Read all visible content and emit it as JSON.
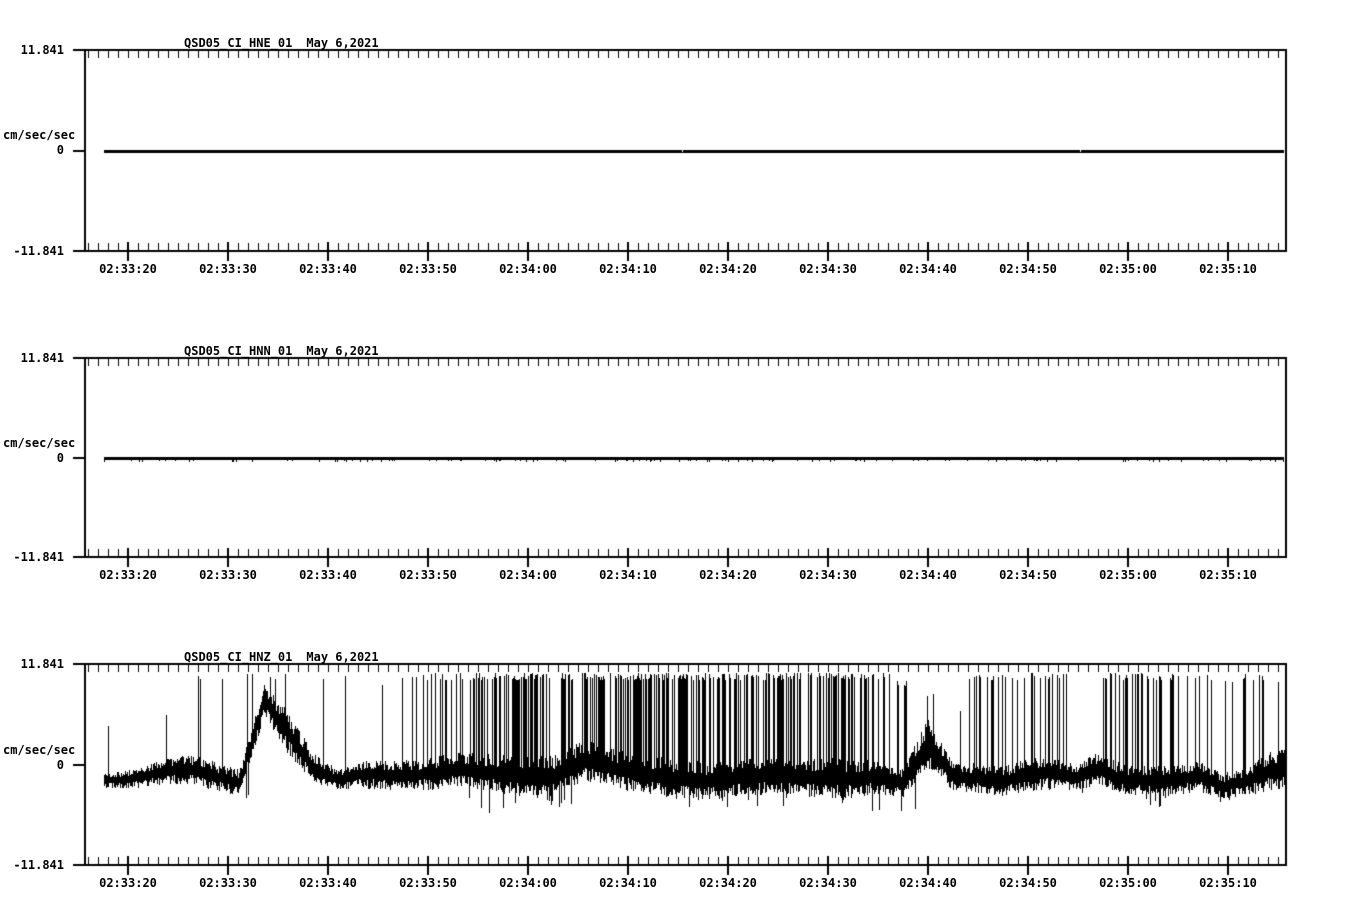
{
  "window": {
    "background": "#ffffff",
    "foreground": "#000000"
  },
  "y_axis": {
    "max_label": "11.841",
    "zero_label": "0",
    "min_label": "-11.841",
    "units_label": "cm/sec/sec"
  },
  "x_axis": {
    "labels": [
      "02:33:20",
      "02:33:30",
      "02:33:40",
      "02:33:50",
      "02:34:00",
      "02:34:10",
      "02:34:20",
      "02:34:30",
      "02:34:40",
      "02:34:50",
      "02:35:00",
      "02:35:10"
    ],
    "major_interval_seconds": 10,
    "minor_interval_seconds": 1
  },
  "panels": [
    {
      "channel": "QSD05_CI_HNE_01",
      "date": "May 6,2021",
      "trace_type": "flat"
    },
    {
      "channel": "QSD05_CI_HNN_01",
      "date": "May 6,2021",
      "trace_type": "flat_with_dropouts"
    },
    {
      "channel": "QSD05_CI_HNZ_01",
      "date": "May 6,2021",
      "trace_type": "noisy"
    }
  ],
  "chart_data": [
    {
      "type": "line",
      "title": "QSD05_CI_HNE_01",
      "subtitle": "May 6,2021",
      "xlabel": "",
      "ylabel": "cm/sec/sec",
      "ylim": [
        -11.841,
        11.841
      ],
      "x_tick_labels": [
        "02:33:20",
        "02:33:30",
        "02:33:40",
        "02:33:50",
        "02:34:00",
        "02:34:10",
        "02:34:20",
        "02:34:30",
        "02:34:40",
        "02:34:50",
        "02:35:00",
        "02:35:10"
      ],
      "grid": false,
      "legend": "none",
      "series": [
        {
          "name": "QSD05_CI_HNE_01",
          "summary": "constant zero acceleration over the whole window",
          "values_constant": 0,
          "line_gaps_x_fraction": [
            0.49,
            0.827
          ]
        }
      ]
    },
    {
      "type": "line",
      "title": "QSD05_CI_HNN_01",
      "subtitle": "May 6,2021",
      "xlabel": "",
      "ylabel": "cm/sec/sec",
      "ylim": [
        -11.841,
        11.841
      ],
      "x_tick_labels": [
        "02:33:20",
        "02:33:30",
        "02:33:40",
        "02:33:50",
        "02:34:00",
        "02:34:10",
        "02:34:20",
        "02:34:30",
        "02:34:40",
        "02:34:50",
        "02:35:00",
        "02:35:10"
      ],
      "grid": false,
      "legend": "none",
      "series": [
        {
          "name": "QSD05_CI_HNN_01",
          "summary": "constant zero line with scattered tiny negative dropout blips",
          "values_constant": 0,
          "dropout_blips": {
            "probability_per_pixel": 0.12,
            "max_depth_cm_s2": 0.35
          }
        }
      ]
    },
    {
      "type": "line",
      "title": "QSD05_CI_HNZ_01",
      "subtitle": "May 6,2021",
      "xlabel": "",
      "ylabel": "cm/sec/sec",
      "ylim": [
        -11.841,
        11.841
      ],
      "x_tick_labels": [
        "02:33:20",
        "02:33:30",
        "02:33:40",
        "02:33:50",
        "02:34:00",
        "02:34:10",
        "02:34:20",
        "02:34:30",
        "02:34:40",
        "02:34:50",
        "02:35:00",
        "02:35:10"
      ],
      "grid": false,
      "legend": "none",
      "series": [
        {
          "name": "QSD05_CI_HNZ_01",
          "summary": "noisy clipped telemetry: baseline near -1 to -2 cm/s/s, dense spikes clipped near +10.4, occasional dips to -6; plateau+decay feature near 02:33:32, lull near 02:34:42",
          "envelope_bin_format": [
            "center",
            "half_band",
            "spike_prob_per_px",
            "spike_top",
            "dip_prob_per_px",
            "dip_bottom"
          ],
          "envelope_bins": [
            [
              -1.4,
              1.0,
              0.01,
              4.5,
              0.0,
              -3.0
            ],
            [
              -1.2,
              1.2,
              0.02,
              5.0,
              0.0,
              -3.0
            ],
            [
              -0.8,
              1.6,
              0.03,
              5.5,
              0.01,
              -3.0
            ],
            [
              -0.6,
              1.8,
              0.05,
              10.3,
              0.01,
              -3.2
            ],
            [
              -1.1,
              1.7,
              0.05,
              10.3,
              0.01,
              -3.2
            ],
            [
              -1.5,
              1.5,
              0.1,
              10.3,
              0.02,
              -3.5
            ],
            [
              8.2,
              2.0,
              0.3,
              10.4,
              0.0,
              -1.0
            ],
            [
              4.0,
              2.5,
              0.06,
              10.3,
              0.0,
              -1.0
            ],
            [
              -0.5,
              1.8,
              0.03,
              10.3,
              0.01,
              -3.0
            ],
            [
              -2.0,
              1.2,
              0.06,
              10.3,
              0.01,
              -3.5
            ],
            [
              -1.2,
              1.6,
              0.05,
              10.3,
              0.02,
              -3.5
            ],
            [
              -1.0,
              1.8,
              0.07,
              9.5,
              0.02,
              -3.5
            ],
            [
              -1.0,
              1.8,
              0.13,
              10.3,
              0.02,
              -4.0
            ],
            [
              -1.2,
              2.0,
              0.25,
              10.4,
              0.03,
              -4.0
            ],
            [
              -1.0,
              2.0,
              0.2,
              10.4,
              0.03,
              -4.5
            ],
            [
              -1.5,
              2.2,
              0.35,
              10.4,
              0.05,
              -5.5
            ],
            [
              -1.5,
              2.5,
              0.55,
              10.4,
              0.05,
              -5.0
            ],
            [
              -1.5,
              2.5,
              0.55,
              10.4,
              0.06,
              -5.0
            ],
            [
              -1.0,
              2.5,
              0.5,
              10.4,
              0.05,
              -4.5
            ],
            [
              0.5,
              2.5,
              0.3,
              10.4,
              0.02,
              -3.5
            ],
            [
              -0.5,
              2.2,
              0.45,
              10.4,
              0.04,
              -4.5
            ],
            [
              -1.2,
              2.3,
              0.55,
              10.4,
              0.05,
              -4.5
            ],
            [
              -1.2,
              2.3,
              0.6,
              10.4,
              0.05,
              -4.5
            ],
            [
              -1.2,
              2.3,
              0.55,
              10.4,
              0.05,
              -4.5
            ],
            [
              -1.3,
              2.3,
              0.55,
              10.4,
              0.05,
              -4.5
            ],
            [
              -1.3,
              2.3,
              0.5,
              10.4,
              0.06,
              -4.5
            ],
            [
              -1.3,
              2.3,
              0.55,
              10.4,
              0.05,
              -4.5
            ],
            [
              -1.3,
              2.3,
              0.5,
              10.4,
              0.06,
              -4.5
            ],
            [
              -1.2,
              2.4,
              0.5,
              10.4,
              0.05,
              -4.5
            ],
            [
              -1.0,
              2.5,
              0.45,
              10.4,
              0.05,
              -4.0
            ],
            [
              -1.2,
              2.3,
              0.45,
              10.4,
              0.05,
              -4.5
            ],
            [
              -1.5,
              2.0,
              0.35,
              10.4,
              0.08,
              -5.0
            ],
            [
              -2.5,
              1.8,
              0.15,
              9.5,
              0.1,
              -5.8
            ],
            [
              2.0,
              3.0,
              0.1,
              8.5,
              0.02,
              -2.0
            ],
            [
              -1.5,
              1.6,
              0.08,
              6.5,
              0.02,
              -3.5
            ],
            [
              -1.5,
              1.8,
              0.15,
              10.3,
              0.03,
              -3.5
            ],
            [
              -2.0,
              1.8,
              0.22,
              10.3,
              0.03,
              -4.0
            ],
            [
              -1.5,
              2.0,
              0.35,
              10.4,
              0.03,
              -4.0
            ],
            [
              -1.5,
              2.0,
              0.3,
              10.4,
              0.04,
              -4.5
            ],
            [
              -2.0,
              1.5,
              0.12,
              10.3,
              0.03,
              -4.0
            ],
            [
              -0.5,
              2.0,
              0.25,
              10.4,
              0.03,
              -3.5
            ],
            [
              -1.5,
              1.8,
              0.3,
              10.4,
              0.04,
              -4.0
            ],
            [
              -1.5,
              1.8,
              0.25,
              10.4,
              0.06,
              -4.5
            ],
            [
              -1.8,
              1.8,
              0.2,
              10.3,
              0.04,
              -4.0
            ],
            [
              -1.5,
              1.8,
              0.22,
              10.3,
              0.04,
              -4.0
            ],
            [
              -2.5,
              1.5,
              0.1,
              10.0,
              0.08,
              -4.5
            ],
            [
              -1.5,
              1.8,
              0.2,
              10.3,
              0.04,
              -4.0
            ],
            [
              0.0,
              2.5,
              0.18,
              10.2,
              0.02,
              -3.0
            ]
          ]
        }
      ]
    }
  ]
}
